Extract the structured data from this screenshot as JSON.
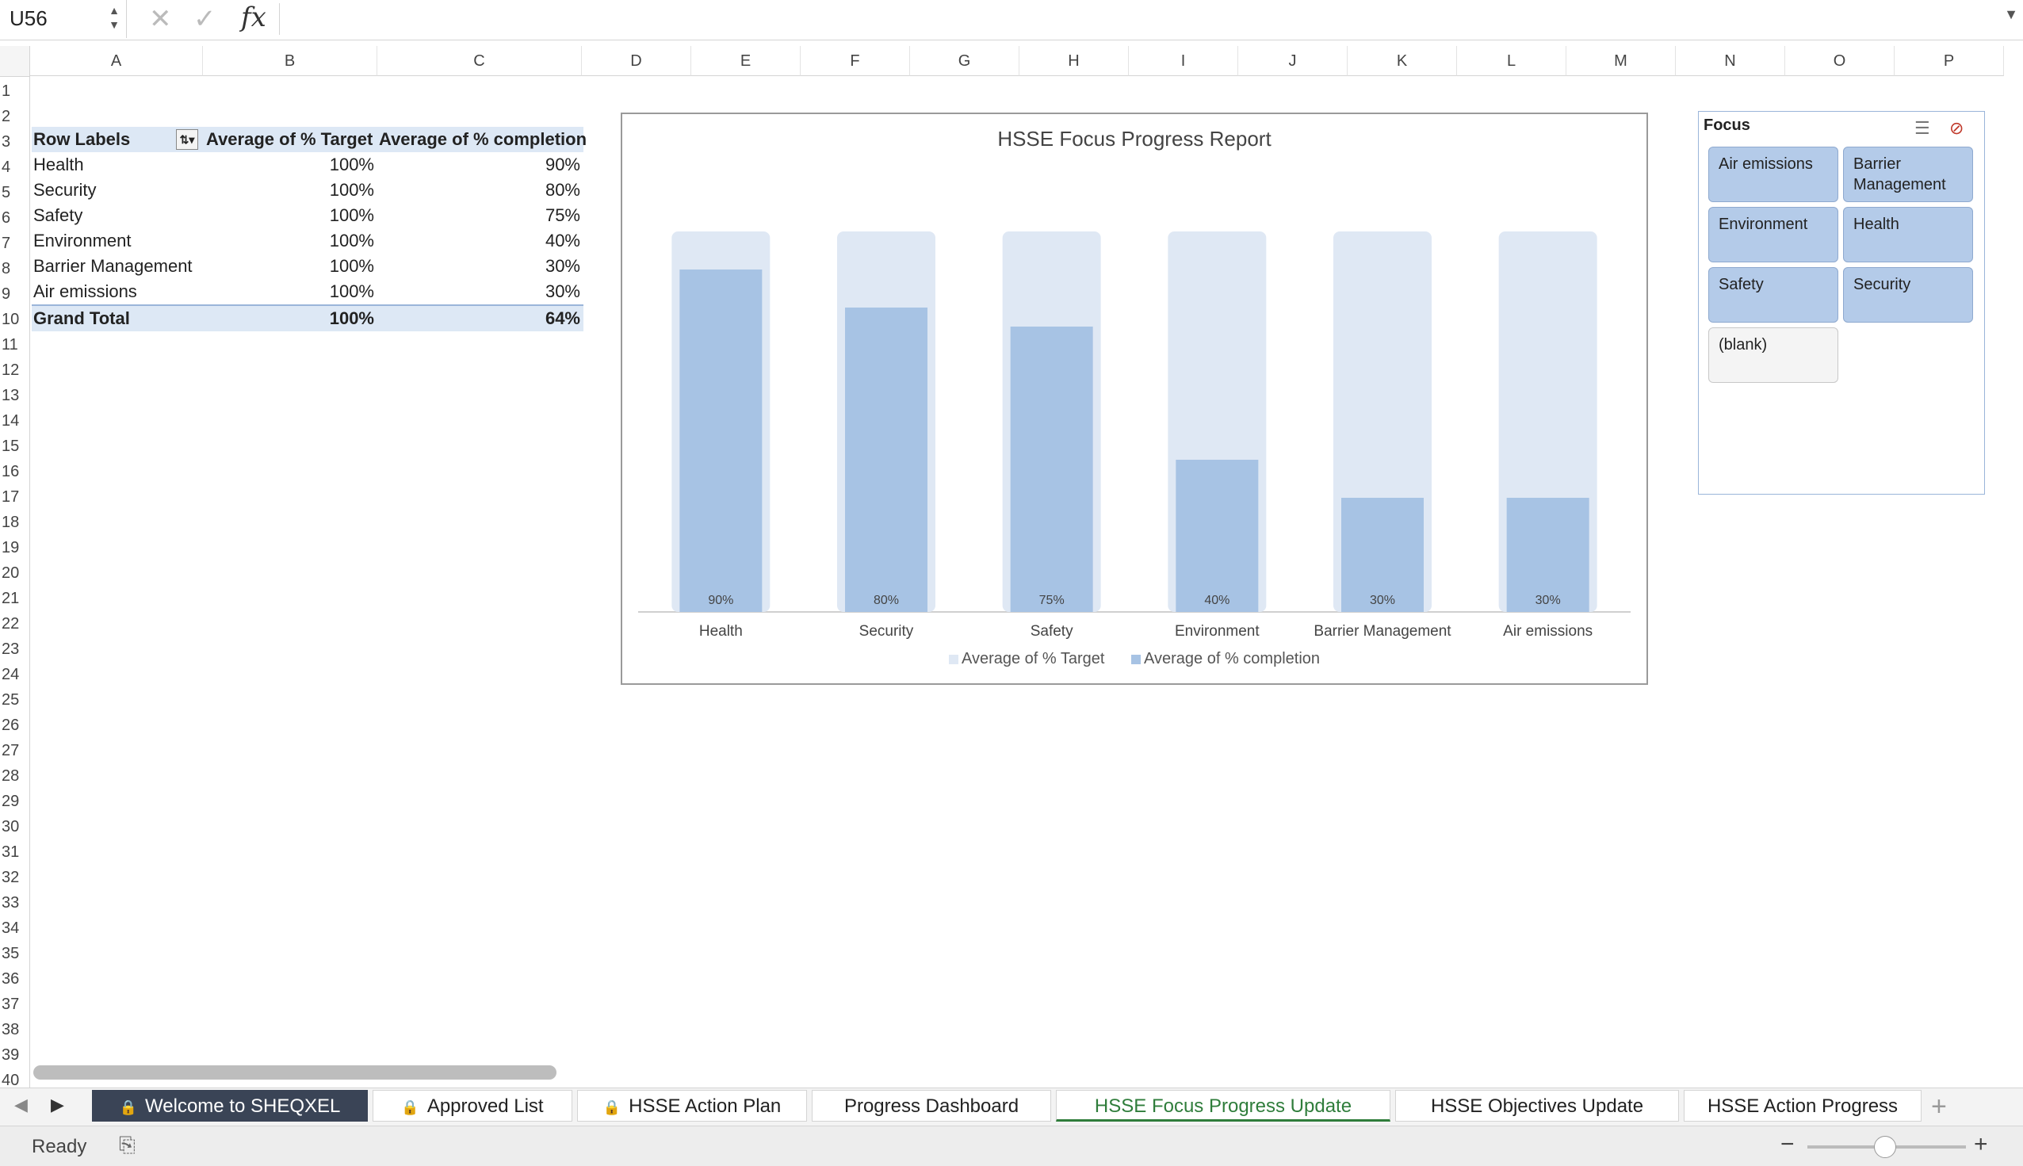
{
  "formula_bar": {
    "name_box": "U56",
    "cancel_icon": "cancel-icon",
    "enter_icon": "enter-icon",
    "fx_label": "fx",
    "formula": ""
  },
  "columns": [
    "A",
    "B",
    "C",
    "D",
    "E",
    "F",
    "G",
    "H",
    "I",
    "J",
    "K",
    "L",
    "M",
    "N",
    "O",
    "P"
  ],
  "rows": [
    "1",
    "2",
    "3",
    "4",
    "5",
    "6",
    "7",
    "8",
    "9",
    "10",
    "11",
    "12",
    "13",
    "14",
    "15",
    "16",
    "17",
    "18",
    "19",
    "20",
    "21",
    "22",
    "23",
    "24",
    "25",
    "26",
    "27",
    "28",
    "29",
    "30",
    "31",
    "32",
    "33",
    "34",
    "35",
    "36",
    "37",
    "38",
    "39",
    "40"
  ],
  "pivot": {
    "headers": [
      "Row Labels",
      "Average of % Target",
      "Average of % completion"
    ],
    "rows": [
      {
        "label": "Health",
        "target": "100%",
        "completion": "90%"
      },
      {
        "label": "Security",
        "target": "100%",
        "completion": "80%"
      },
      {
        "label": "Safety",
        "target": "100%",
        "completion": "75%"
      },
      {
        "label": "Environment",
        "target": "100%",
        "completion": "40%"
      },
      {
        "label": "Barrier Management",
        "target": "100%",
        "completion": "30%"
      },
      {
        "label": "Air emissions",
        "target": "100%",
        "completion": "30%"
      }
    ],
    "total": {
      "label": "Grand Total",
      "target": "100%",
      "completion": "64%"
    }
  },
  "chart_data": {
    "type": "bar",
    "title": "HSSE Focus Progress Report",
    "categories": [
      "Health",
      "Security",
      "Safety",
      "Environment",
      "Barrier Management",
      "Air emissions"
    ],
    "series": [
      {
        "name": "Average of % Target",
        "values": [
          100,
          100,
          100,
          100,
          100,
          100
        ],
        "color": "#dfe8f4"
      },
      {
        "name": "Average of % completion",
        "values": [
          90,
          80,
          75,
          40,
          30,
          30
        ],
        "color": "#a7c3e4"
      }
    ],
    "data_labels": [
      "90%",
      "80%",
      "75%",
      "40%",
      "30%",
      "30%"
    ],
    "ylim": [
      0,
      100
    ],
    "xlabel": "",
    "ylabel": "",
    "legend": "bottom",
    "grid": false
  },
  "slicer": {
    "title": "Focus",
    "multiselect_icon": "multi-select-icon",
    "clear_filter_icon": "clear-filter-icon",
    "items": [
      "Air emissions",
      "Barrier Management",
      "Environment",
      "Health",
      "Safety",
      "Security",
      "(blank)"
    ]
  },
  "tabs": [
    {
      "label": "Welcome to SHEQXEL",
      "locked": true
    },
    {
      "label": "Approved List",
      "locked": true
    },
    {
      "label": "HSSE Action Plan",
      "locked": true
    },
    {
      "label": "Progress Dashboard",
      "locked": false
    },
    {
      "label": "HSSE Focus Progress Update",
      "locked": false
    },
    {
      "label": "HSSE Objectives Update",
      "locked": false
    },
    {
      "label": "HSSE Action Progress",
      "locked": false
    }
  ],
  "status": {
    "ready": "Ready",
    "macro_icon": "macro-record-icon"
  }
}
